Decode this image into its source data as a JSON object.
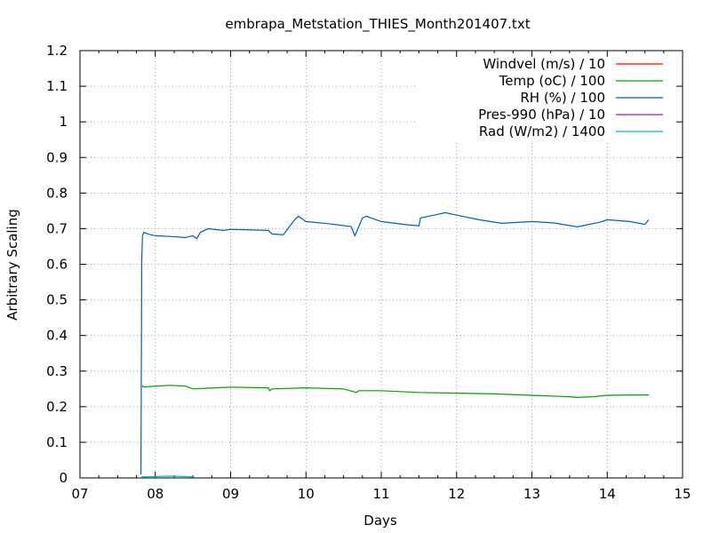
{
  "chart_data": {
    "type": "line",
    "title": "embrapa_Metstation_THIES_Month201407.txt",
    "xlabel": "Days",
    "ylabel": "Arbitrary Scaling",
    "xlim": [
      7,
      15
    ],
    "ylim": [
      0,
      1.2
    ],
    "x_ticks": [
      "07",
      "08",
      "09",
      "10",
      "11",
      "12",
      "13",
      "14",
      "15"
    ],
    "y_ticks": [
      "0",
      "0.1",
      "0.2",
      "0.3",
      "0.4",
      "0.5",
      "0.6",
      "0.7",
      "0.8",
      "0.9",
      "1",
      "1.1",
      "1.2"
    ],
    "grid": true,
    "legend_position": "top-right",
    "series": [
      {
        "name": "Windvel (m/s) / 10",
        "color": "#ff0000",
        "x": [],
        "y": []
      },
      {
        "name": "Temp (oC) / 100",
        "color": "#00a000",
        "x": [
          7.83,
          7.84,
          8.0,
          8.2,
          8.4,
          8.5,
          8.7,
          9.0,
          9.5,
          9.52,
          9.55,
          10.0,
          10.5,
          10.67,
          10.7,
          11.0,
          11.5,
          12.0,
          12.5,
          13.0,
          13.5,
          13.6,
          13.8,
          14.0,
          14.3,
          14.55
        ],
        "y": [
          0.26,
          0.255,
          0.258,
          0.26,
          0.258,
          0.25,
          0.252,
          0.255,
          0.253,
          0.245,
          0.25,
          0.253,
          0.25,
          0.24,
          0.245,
          0.245,
          0.24,
          0.238,
          0.236,
          0.232,
          0.228,
          0.226,
          0.228,
          0.232,
          0.233,
          0.233
        ]
      },
      {
        "name": "RH (%) / 100",
        "color": "#0060ad",
        "x": [
          7.81,
          7.82,
          7.83,
          7.85,
          7.9,
          8.0,
          8.2,
          8.4,
          8.5,
          8.55,
          8.6,
          8.7,
          8.9,
          9.0,
          9.2,
          9.5,
          9.55,
          9.7,
          9.85,
          9.9,
          10.0,
          10.3,
          10.6,
          10.65,
          10.75,
          10.8,
          11.0,
          11.3,
          11.5,
          11.52,
          11.7,
          11.85,
          12.0,
          12.3,
          12.6,
          13.0,
          13.3,
          13.6,
          13.9,
          14.0,
          14.3,
          14.5,
          14.55
        ],
        "y": [
          0.01,
          0.61,
          0.68,
          0.69,
          0.685,
          0.68,
          0.678,
          0.675,
          0.68,
          0.672,
          0.69,
          0.7,
          0.695,
          0.698,
          0.697,
          0.695,
          0.685,
          0.683,
          0.725,
          0.735,
          0.72,
          0.714,
          0.706,
          0.68,
          0.73,
          0.735,
          0.72,
          0.712,
          0.708,
          0.73,
          0.738,
          0.745,
          0.738,
          0.725,
          0.715,
          0.72,
          0.716,
          0.705,
          0.718,
          0.725,
          0.72,
          0.712,
          0.725
        ]
      },
      {
        "name": "Pres-990 (hPa) / 10",
        "color": "#a020a0",
        "x": [],
        "y": []
      },
      {
        "name": "Rad (W/m2) / 1400",
        "color": "#00c0c0",
        "x": [
          7.82,
          7.83,
          8.0,
          8.2,
          8.4,
          8.5,
          8.52
        ],
        "y": [
          0.005,
          0.003,
          0.004,
          0.005,
          0.004,
          0.003,
          0.0
        ]
      }
    ]
  }
}
